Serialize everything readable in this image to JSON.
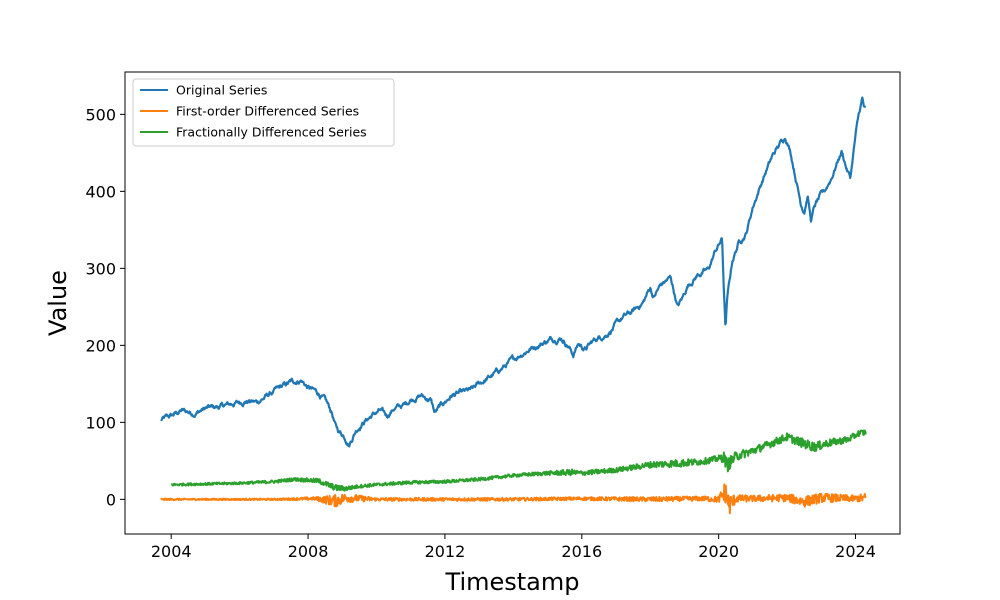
{
  "chart_data": {
    "type": "line",
    "title": "",
    "xlabel": "Timestamp",
    "ylabel": "Value",
    "xlim": [
      2002.65,
      2025.3
    ],
    "ylim": [
      -45,
      555
    ],
    "x_ticks": [
      2004,
      2008,
      2012,
      2016,
      2020,
      2024
    ],
    "y_ticks": [
      0,
      100,
      200,
      300,
      400,
      500
    ],
    "grid": false,
    "legend_position": "top-left",
    "series": [
      {
        "name": "Original Series",
        "color": "#1f77b4",
        "x": [
          2003.7,
          2004.0,
          2004.3,
          2004.7,
          2005.0,
          2005.4,
          2005.8,
          2006.2,
          2006.5,
          2006.9,
          2007.2,
          2007.5,
          2007.8,
          2008.0,
          2008.3,
          2008.5,
          2008.7,
          2008.8,
          2008.9,
          2009.0,
          2009.1,
          2009.2,
          2009.4,
          2009.6,
          2009.9,
          2010.1,
          2010.3,
          2010.5,
          2010.8,
          2011.0,
          2011.3,
          2011.6,
          2011.7,
          2011.9,
          2012.2,
          2012.5,
          2012.8,
          2013.0,
          2013.3,
          2013.6,
          2013.9,
          2014.2,
          2014.5,
          2014.8,
          2015.1,
          2015.4,
          2015.6,
          2015.75,
          2015.9,
          2016.1,
          2016.4,
          2016.7,
          2016.9,
          2017.2,
          2017.5,
          2017.8,
          2018.0,
          2018.1,
          2018.3,
          2018.6,
          2018.8,
          2018.95,
          2019.1,
          2019.4,
          2019.7,
          2019.9,
          2020.1,
          2020.15,
          2020.2,
          2020.25,
          2020.4,
          2020.6,
          2020.8,
          2021.0,
          2021.2,
          2021.4,
          2021.6,
          2021.8,
          2021.95,
          2022.1,
          2022.2,
          2022.4,
          2022.5,
          2022.6,
          2022.7,
          2022.8,
          2022.95,
          2023.1,
          2023.3,
          2023.5,
          2023.6,
          2023.75,
          2023.85,
          2024.0,
          2024.1,
          2024.2,
          2024.25,
          2024.3
        ],
        "y": [
          103,
          108,
          115,
          112,
          118,
          120,
          124,
          128,
          126,
          137,
          145,
          152,
          155,
          145,
          138,
          128,
          112,
          95,
          88,
          85,
          80,
          72,
          90,
          100,
          110,
          115,
          108,
          118,
          122,
          130,
          135,
          128,
          112,
          122,
          135,
          138,
          142,
          150,
          158,
          168,
          178,
          188,
          196,
          202,
          208,
          210,
          200,
          188,
          202,
          195,
          208,
          214,
          222,
          236,
          244,
          256,
          275,
          262,
          278,
          288,
          250,
          262,
          278,
          292,
          298,
          322,
          338,
          275,
          222,
          260,
          310,
          335,
          345,
          380,
          405,
          428,
          448,
          462,
          472,
          452,
          430,
          385,
          375,
          395,
          362,
          380,
          392,
          400,
          418,
          442,
          452,
          428,
          418,
          472,
          500,
          520,
          508,
          505
        ]
      },
      {
        "name": "First-order Differenced Series",
        "color": "#ff7f0e",
        "x": [
          2003.7,
          2005.0,
          2007.0,
          2008.2,
          2008.8,
          2009.1,
          2010.0,
          2012.0,
          2014.0,
          2016.0,
          2018.0,
          2019.5,
          2020.0,
          2020.2,
          2020.3,
          2020.5,
          2021.0,
          2022.0,
          2022.5,
          2023.0,
          2024.0,
          2024.3
        ],
        "y": [
          0,
          0,
          0,
          1,
          -2,
          2,
          0,
          0,
          0,
          1,
          0,
          1,
          0,
          10,
          -8,
          1,
          1,
          2,
          -3,
          2,
          1,
          2
        ],
        "band": [
          1,
          1,
          1,
          2,
          8,
          6,
          2,
          2,
          2,
          2,
          3,
          3,
          4,
          15,
          15,
          5,
          4,
          5,
          7,
          6,
          4,
          6
        ]
      },
      {
        "name": "Fractionally Differenced Series",
        "color": "#2ca02c",
        "x": [
          2004.0,
          2005.0,
          2006.0,
          2007.0,
          2007.6,
          2008.3,
          2008.8,
          2009.1,
          2009.5,
          2010.0,
          2011.0,
          2012.0,
          2013.0,
          2014.0,
          2015.0,
          2015.7,
          2016.0,
          2017.0,
          2018.0,
          2018.9,
          2019.5,
          2020.0,
          2020.15,
          2020.25,
          2020.5,
          2021.0,
          2021.5,
          2022.0,
          2022.4,
          2022.8,
          2023.2,
          2023.8,
          2024.1,
          2024.3
        ],
        "y": [
          19,
          20,
          21,
          23,
          26,
          24,
          15,
          14,
          17,
          19,
          22,
          23,
          26,
          31,
          34,
          35,
          34,
          38,
          45,
          47,
          49,
          53,
          55,
          44,
          56,
          63,
          72,
          81,
          74,
          68,
          73,
          78,
          86,
          87
        ],
        "band": [
          1.5,
          1.5,
          1.5,
          2,
          2,
          3,
          4,
          3,
          2,
          2,
          2,
          2,
          2,
          2,
          2.5,
          4,
          3,
          3,
          4,
          5,
          4,
          4,
          7,
          9,
          6,
          5,
          5,
          5,
          6,
          6,
          5,
          4,
          4,
          4
        ]
      }
    ]
  }
}
